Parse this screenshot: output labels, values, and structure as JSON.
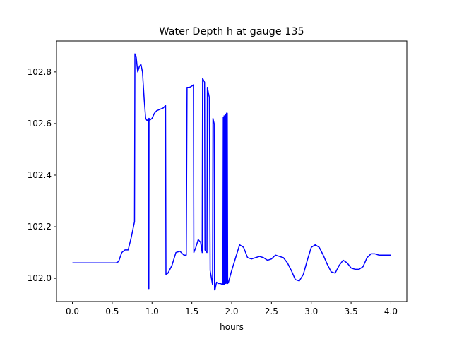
{
  "chart_data": {
    "type": "line",
    "title": "Water Depth h at gauge 135",
    "xlabel": "hours",
    "ylabel": "",
    "xlim": [
      -0.2,
      4.2
    ],
    "ylim": [
      101.91,
      102.92
    ],
    "xticks": [
      0.0,
      0.5,
      1.0,
      1.5,
      2.0,
      2.5,
      3.0,
      3.5,
      4.0
    ],
    "xtick_labels": [
      "0.0",
      "0.5",
      "1.0",
      "1.5",
      "2.0",
      "2.5",
      "3.0",
      "3.5",
      "4.0"
    ],
    "yticks": [
      102.0,
      102.2,
      102.4,
      102.6,
      102.8
    ],
    "ytick_labels": [
      "102.0",
      "102.2",
      "102.4",
      "102.6",
      "102.8"
    ],
    "grid": false,
    "legend": "none",
    "series": [
      {
        "color": "#0000ff",
        "x": [
          0.0,
          0.2,
          0.4,
          0.55,
          0.58,
          0.62,
          0.66,
          0.7,
          0.74,
          0.78,
          0.785,
          0.8,
          0.82,
          0.84,
          0.86,
          0.88,
          0.9,
          0.92,
          0.94,
          0.955,
          0.96,
          0.962,
          0.97,
          0.98,
          1.0,
          1.03,
          1.06,
          1.1,
          1.14,
          1.17,
          1.175,
          1.2,
          1.25,
          1.3,
          1.35,
          1.4,
          1.43,
          1.44,
          1.445,
          1.47,
          1.5,
          1.52,
          1.525,
          1.55,
          1.58,
          1.61,
          1.63,
          1.635,
          1.66,
          1.665,
          1.69,
          1.695,
          1.72,
          1.73,
          1.76,
          1.765,
          1.78,
          1.785,
          1.79,
          1.8,
          1.81,
          1.83,
          1.86,
          1.89,
          1.895,
          1.9,
          1.905,
          1.91,
          1.915,
          1.92,
          1.925,
          1.93,
          1.935,
          1.94,
          1.945,
          1.95,
          1.96,
          2.0,
          2.05,
          2.1,
          2.15,
          2.2,
          2.25,
          2.3,
          2.35,
          2.4,
          2.45,
          2.5,
          2.55,
          2.6,
          2.65,
          2.7,
          2.75,
          2.8,
          2.85,
          2.9,
          2.95,
          3.0,
          3.05,
          3.1,
          3.15,
          3.2,
          3.25,
          3.3,
          3.35,
          3.4,
          3.45,
          3.5,
          3.55,
          3.6,
          3.65,
          3.7,
          3.75,
          3.8,
          3.85,
          3.9,
          3.95,
          4.0
        ],
        "y": [
          102.06,
          102.06,
          102.06,
          102.06,
          102.065,
          102.1,
          102.11,
          102.11,
          102.16,
          102.22,
          102.87,
          102.86,
          102.8,
          102.82,
          102.83,
          102.8,
          102.7,
          102.62,
          102.61,
          102.62,
          101.96,
          102.61,
          102.62,
          102.615,
          102.62,
          102.64,
          102.65,
          102.655,
          102.66,
          102.67,
          102.015,
          102.02,
          102.05,
          102.1,
          102.105,
          102.09,
          102.09,
          102.74,
          102.74,
          102.74,
          102.745,
          102.75,
          102.1,
          102.12,
          102.15,
          102.14,
          102.1,
          102.775,
          102.76,
          102.11,
          102.1,
          102.74,
          102.7,
          102.03,
          101.975,
          102.62,
          102.6,
          101.955,
          101.955,
          101.97,
          101.985,
          101.98,
          101.98,
          101.975,
          102.625,
          101.975,
          102.63,
          101.975,
          102.625,
          101.98,
          102.635,
          101.98,
          102.64,
          101.985,
          102.64,
          101.98,
          101.985,
          102.03,
          102.08,
          102.13,
          102.12,
          102.08,
          102.075,
          102.08,
          102.085,
          102.08,
          102.07,
          102.075,
          102.09,
          102.085,
          102.08,
          102.06,
          102.03,
          101.995,
          101.99,
          102.015,
          102.07,
          102.12,
          102.13,
          102.12,
          102.09,
          102.055,
          102.025,
          102.02,
          102.05,
          102.07,
          102.06,
          102.04,
          102.035,
          102.035,
          102.045,
          102.08,
          102.095,
          102.095,
          102.09,
          102.09,
          102.09,
          102.09
        ]
      }
    ]
  }
}
